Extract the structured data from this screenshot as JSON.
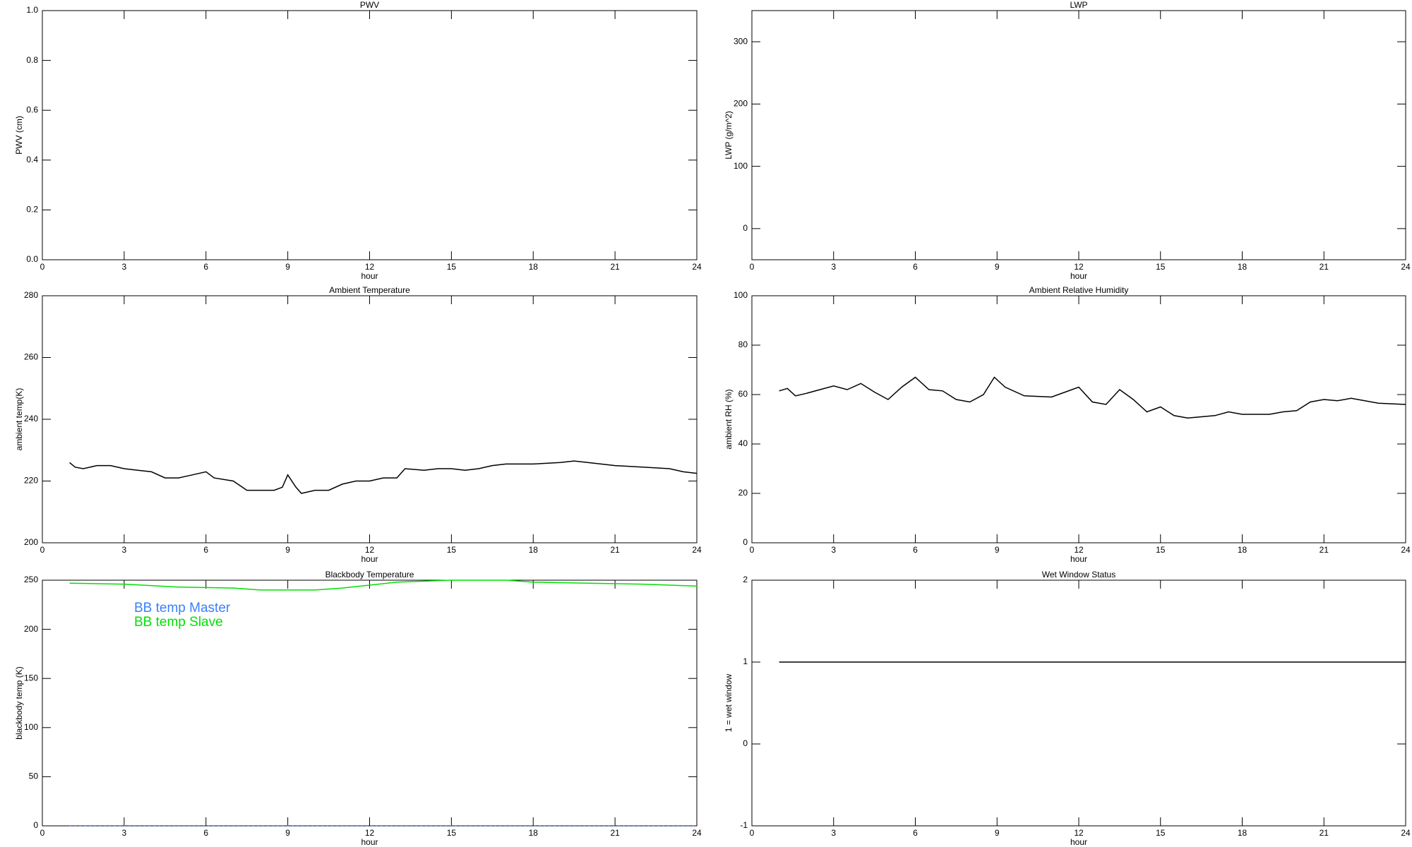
{
  "chart_data": [
    {
      "type": "line",
      "title": "PWV",
      "xlabel": "hour",
      "ylabel": "PWV (cm)",
      "xlim": [
        0,
        24
      ],
      "xticks": [
        0,
        3,
        6,
        9,
        12,
        15,
        18,
        21,
        24
      ],
      "ylim": [
        0,
        1
      ],
      "yticks": [
        {
          "value": 0,
          "label": "0.0"
        },
        0.2,
        0.4,
        0.6,
        0.8,
        {
          "value": 1,
          "label": "1.0"
        }
      ]
    },
    {
      "type": "line",
      "title": "LWP",
      "xlabel": "hour",
      "ylabel": "LWP (g/m^2)",
      "xlim": [
        0,
        24
      ],
      "xticks": [
        0,
        3,
        6,
        9,
        12,
        15,
        18,
        21,
        24
      ],
      "ylim": [
        -50,
        350
      ],
      "yticks": [
        0,
        100,
        200,
        300
      ]
    },
    {
      "type": "line",
      "title": "Ambient Temperature",
      "xlabel": "hour",
      "ylabel": "ambient temp(K)",
      "xlim": [
        0,
        24
      ],
      "xticks": [
        0,
        3,
        6,
        9,
        12,
        15,
        18,
        21,
        24
      ],
      "ylim": [
        200,
        280
      ],
      "yticks": [
        200,
        220,
        240,
        260,
        280
      ],
      "color": "#000000",
      "x": [
        1,
        1.2,
        1.5,
        2,
        2.5,
        3,
        3.5,
        4,
        4.5,
        5,
        5.5,
        6,
        6.3,
        7,
        7.5,
        8,
        8.5,
        8.8,
        9,
        9.3,
        9.5,
        10,
        10.5,
        11,
        11.5,
        12,
        12.5,
        13,
        13.3,
        14,
        14.5,
        15,
        15.5,
        16,
        16.5,
        17,
        18,
        19,
        19.5,
        20,
        21,
        22,
        23,
        23.5,
        24
      ],
      "values": [
        226,
        224.5,
        224,
        225,
        225,
        224,
        223.5,
        223,
        221,
        221,
        222,
        223,
        221,
        220,
        217,
        217,
        217,
        218,
        222,
        218,
        216,
        217,
        217,
        219,
        220,
        220,
        221,
        221,
        224,
        223.5,
        224,
        224,
        223.5,
        224,
        225,
        225.5,
        225.5,
        226,
        226.5,
        226,
        225,
        224.5,
        224,
        223,
        222.5
      ]
    },
    {
      "type": "line",
      "title": "Ambient Relative Humidity",
      "xlabel": "hour",
      "ylabel": "ambient RH (%)",
      "xlim": [
        0,
        24
      ],
      "xticks": [
        0,
        3,
        6,
        9,
        12,
        15,
        18,
        21,
        24
      ],
      "ylim": [
        0,
        100
      ],
      "yticks": [
        0,
        20,
        40,
        60,
        80,
        100
      ],
      "color": "#000000",
      "x": [
        1,
        1.3,
        1.6,
        2,
        2.5,
        3,
        3.5,
        4,
        4.5,
        5,
        5.5,
        6,
        6.5,
        7,
        7.5,
        8,
        8.5,
        8.9,
        9.3,
        10,
        11,
        11.5,
        12,
        12.5,
        13,
        13.5,
        14,
        14.5,
        15,
        15.5,
        16,
        17,
        17.5,
        18,
        19,
        19.5,
        20,
        20.5,
        21,
        21.5,
        22,
        23,
        24
      ],
      "values": [
        61.5,
        62.5,
        59.5,
        60.5,
        62,
        63.5,
        62,
        64.5,
        61,
        58,
        63,
        67,
        62,
        61.5,
        58,
        57,
        60,
        67,
        63,
        59.5,
        59,
        61,
        63,
        57,
        56,
        62,
        58,
        53,
        55,
        51.5,
        50.5,
        51.5,
        53,
        52,
        52,
        53,
        53.5,
        57,
        58,
        57.5,
        58.5,
        56.5,
        56
      ]
    },
    {
      "type": "line",
      "title": "Blackbody Temperature",
      "xlabel": "hour",
      "ylabel": "blackbody temp (K)",
      "xlim": [
        0,
        24
      ],
      "xticks": [
        0,
        3,
        6,
        9,
        12,
        15,
        18,
        21,
        24
      ],
      "ylim": [
        0,
        250
      ],
      "yticks": [
        0,
        50,
        100,
        150,
        200,
        250
      ],
      "legend": "upper left",
      "x": [
        1,
        3,
        5,
        7,
        8,
        9,
        10,
        11,
        12,
        13,
        14,
        15,
        16,
        17,
        18,
        20,
        22,
        24
      ],
      "series": [
        {
          "name": "BB temp Master",
          "color": "#3a7fff",
          "values": [
            0,
            0,
            0,
            0,
            0,
            0,
            0,
            0,
            0,
            0,
            0,
            0,
            0,
            0,
            0,
            0,
            0,
            0
          ]
        },
        {
          "name": "BB temp Slave",
          "color": "#00e000",
          "values": [
            247,
            246,
            243,
            242,
            240,
            240,
            240,
            242,
            245,
            248,
            249,
            250,
            250,
            250,
            248,
            247,
            246,
            244
          ]
        }
      ]
    },
    {
      "type": "line",
      "title": "Wet Window Status",
      "xlabel": "hour",
      "ylabel": "1 = wet window",
      "xlim": [
        0,
        24
      ],
      "xticks": [
        0,
        3,
        6,
        9,
        12,
        15,
        18,
        21,
        24
      ],
      "ylim": [
        -1,
        2
      ],
      "yticks": [
        -1,
        0,
        1,
        2
      ],
      "color": "#000000",
      "x": [
        1,
        24
      ],
      "values": [
        1,
        1
      ]
    }
  ]
}
